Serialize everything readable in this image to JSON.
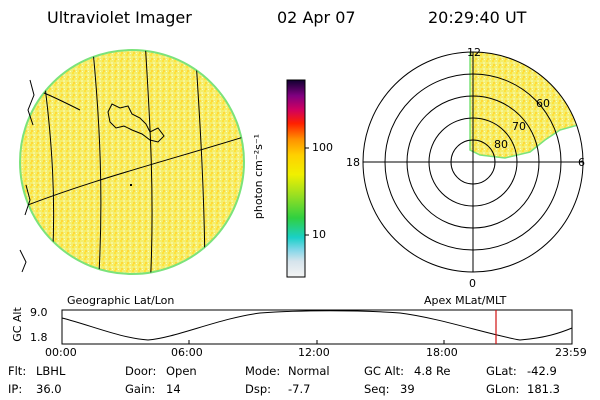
{
  "header": {
    "title": "Ultraviolet Imager",
    "date": "02 Apr 07",
    "time": "20:29:40 UT"
  },
  "colorbar": {
    "label": "photon cm⁻²s⁻¹",
    "ticks": [
      "100",
      "10"
    ],
    "scale": "log"
  },
  "geo_panel": {
    "label": "Geographic Lat/Lon"
  },
  "polar_panel": {
    "label": "Apex MLat/MLT",
    "mlt_labels": [
      "12",
      "18",
      "6",
      "0"
    ],
    "lat_labels": [
      "80",
      "70",
      "60"
    ]
  },
  "altitude_plot": {
    "ylabel": "GC Alt",
    "yticks": [
      "9.0",
      "1.8"
    ],
    "xticks": [
      "00:00",
      "06:00",
      "12:00",
      "18:00",
      "23:59"
    ],
    "current_time_marker": "20:29:40",
    "colors": {
      "marker": "#d01010"
    }
  },
  "footer": {
    "row1": [
      {
        "label": "Flt:",
        "value": "LBHL"
      },
      {
        "label": "Door:",
        "value": "Open"
      },
      {
        "label": "Mode:",
        "value": "Normal"
      },
      {
        "label": "GC Alt:",
        "value": "4.8 Re"
      },
      {
        "label": "GLat:",
        "value": "-42.9"
      }
    ],
    "row2": [
      {
        "label": "IP:",
        "value": "36.0"
      },
      {
        "label": "Gain:",
        "value": "14"
      },
      {
        "label": "Dsp:",
        "value": "-7.7"
      },
      {
        "label": "Seq:",
        "value": "39"
      },
      {
        "label": "GLon:",
        "value": "181.3"
      }
    ]
  }
}
